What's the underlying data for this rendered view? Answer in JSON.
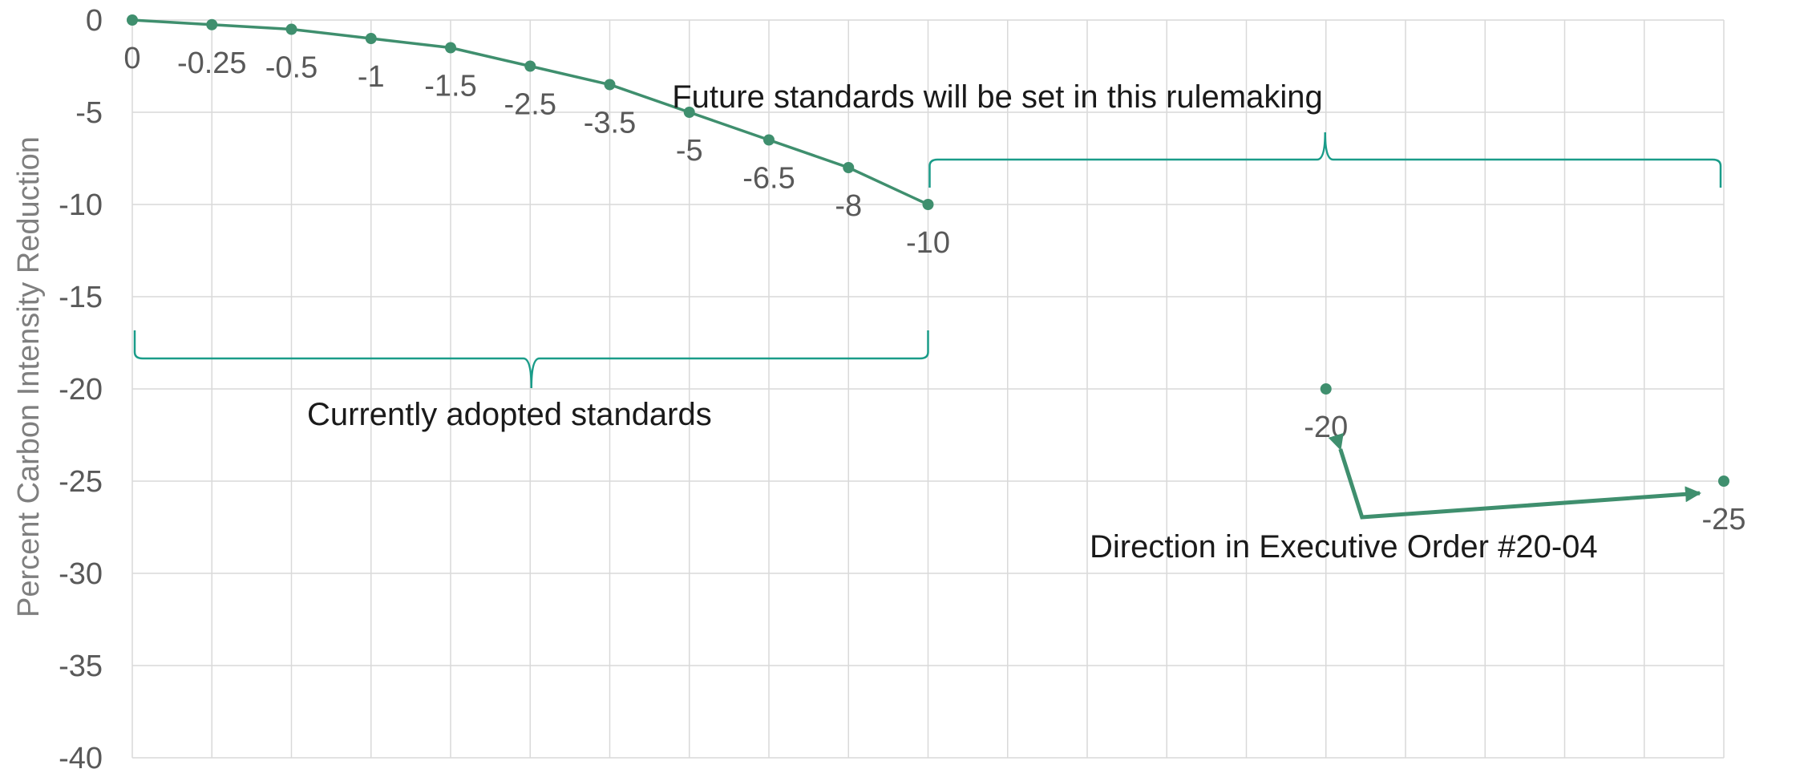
{
  "chart_data": {
    "type": "line",
    "title": "",
    "xlabel": "",
    "ylabel": "Percent Carbon Intensity Reduction",
    "ylim": [
      -40,
      0
    ],
    "yticks": [
      0,
      -5,
      -10,
      -15,
      -20,
      -25,
      -30,
      -35,
      -40
    ],
    "grid": true,
    "x_categories": 20,
    "colors": {
      "series": "#3f8f6e",
      "brace": "#1a9c89",
      "grid": "#d9d9d9"
    },
    "series": [
      {
        "points": [
          {
            "x": 0,
            "y": 0,
            "label": "0"
          },
          {
            "x": 1,
            "y": -0.25,
            "label": "-0.25"
          },
          {
            "x": 2,
            "y": -0.5,
            "label": "-0.5"
          },
          {
            "x": 3,
            "y": -1,
            "label": "-1"
          },
          {
            "x": 4,
            "y": -1.5,
            "label": "-1.5"
          },
          {
            "x": 5,
            "y": -2.5,
            "label": "-2.5"
          },
          {
            "x": 6,
            "y": -3.5,
            "label": "-3.5"
          },
          {
            "x": 7,
            "y": -5,
            "label": "-5"
          },
          {
            "x": 8,
            "y": -6.5,
            "label": "-6.5"
          },
          {
            "x": 9,
            "y": -8,
            "label": "-8"
          },
          {
            "x": 10,
            "y": -10,
            "label": "-10"
          }
        ]
      },
      {
        "points": [
          {
            "x": 15,
            "y": -20,
            "label": "-20"
          },
          {
            "x": 20,
            "y": -25,
            "label": "-25"
          }
        ]
      }
    ],
    "annotations": {
      "future": "Future standards will be set in this rulemaking",
      "current": "Currently adopted standards",
      "executive": "Direction in Executive Order #20-04"
    }
  }
}
